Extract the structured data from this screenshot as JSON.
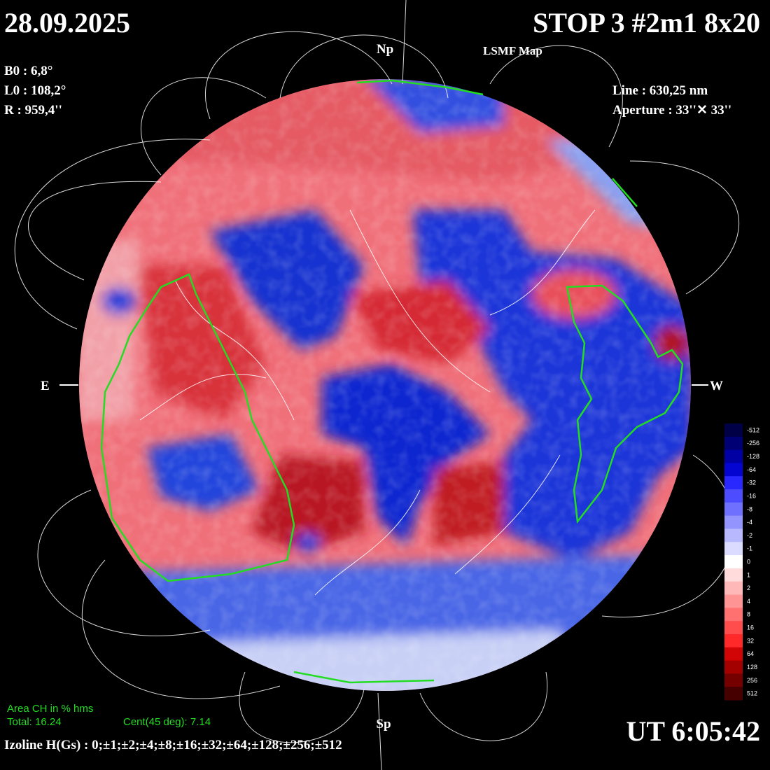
{
  "header": {
    "date": "28.09.2025",
    "title": "STOP 3 #2m1 8x20",
    "subtitle": "LSMF  Map",
    "pole_north": "Np",
    "pole_south": "Sp"
  },
  "params": {
    "b0": "B0 : 6,8°",
    "l0": "L0 : 108,2°",
    "r": "R  : 959,4''",
    "line": "Line :  630,25 nm",
    "aperture": "Aperture : 33''✕ 33''"
  },
  "limbs": {
    "east": "E",
    "west": "W"
  },
  "coronal_holes": {
    "title": "Area CH in % hms",
    "total": "Total: 16.24",
    "central": "Cent(45 deg): 7.14"
  },
  "isolines": "Izoline H(Gs) : 0;±1;±2;±4;±8;±16;±32;±64;±128;±256;±512",
  "time": "UT 6:05:42",
  "colorbar": {
    "labels": [
      "-512",
      "-256",
      "-128",
      "-64",
      "-32",
      "-16",
      "-8",
      "-4",
      "-2",
      "-1",
      "0",
      "1",
      "2",
      "4",
      "8",
      "16",
      "32",
      "64",
      "128",
      "256",
      "512"
    ]
  }
}
